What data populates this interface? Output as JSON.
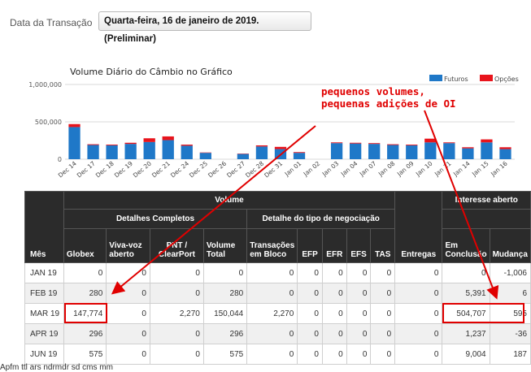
{
  "filter": {
    "label": "Data da Transação",
    "value": "Quarta-feira, 16 de janeiro de 2019. (Preliminar)"
  },
  "chart": {
    "title": "Volume Diário do Câmbio no Gráfico",
    "legend": [
      {
        "name": "Futuros",
        "color": "#1f78c8"
      },
      {
        "name": "Opções",
        "color": "#e8141c"
      }
    ]
  },
  "chart_data": {
    "type": "bar",
    "title": "Volume Diário do Câmbio no Gráfico",
    "stacked": true,
    "ylim": [
      0,
      1000000
    ],
    "yticks": [
      "1,000,000",
      "500,000",
      "0"
    ],
    "ytick_values": [
      1000000,
      500000,
      0
    ],
    "legend_position": "top-right",
    "categories": [
      "Dec 14",
      "Dec 17",
      "Dec 18",
      "Dec 19",
      "Dec 20",
      "Dec 21",
      "Dec 24",
      "Dec 25",
      "Dec 26",
      "Dec 27",
      "Dec 28",
      "Dec 31",
      "Jan 01",
      "Jan 02",
      "Jan 03",
      "Jan 04",
      "Jan 07",
      "Jan 08",
      "Jan 09",
      "Jan 10",
      "Jan 11",
      "Jan 14",
      "Jan 15",
      "Jan 16"
    ],
    "xtick_labels": [
      "Dec 14",
      "Dec 17",
      "Dec 18",
      "Dec 19",
      "Dec 20",
      "Dec 21",
      "Dec 24",
      "Dec 25",
      "Dec 26",
      "Dec 27",
      "Dec 28",
      "Dec 31",
      "Jan 01",
      "Jan 02",
      "Jan 03",
      "Jan 04",
      "Jan 07",
      "Jan 08",
      "Jan 09",
      "Jan 10",
      "Jan 11",
      "Jan 14",
      "Jan 15",
      "Jan 16"
    ],
    "series": [
      {
        "name": "Futuros",
        "color": "#1f78c8",
        "values": [
          430000,
          190000,
          185000,
          205000,
          230000,
          255000,
          180000,
          85000,
          0,
          70000,
          170000,
          135000,
          85000,
          0,
          215000,
          210000,
          205000,
          190000,
          185000,
          225000,
          215000,
          145000,
          225000,
          135000
        ]
      },
      {
        "name": "Opções",
        "color": "#e8141c",
        "values": [
          40000,
          10000,
          10000,
          15000,
          50000,
          50000,
          15000,
          5000,
          0,
          5000,
          15000,
          30000,
          10000,
          0,
          10000,
          10000,
          10000,
          10000,
          10000,
          50000,
          10000,
          15000,
          40000,
          25000
        ]
      }
    ]
  },
  "table": {
    "group_volume": "Volume",
    "group_interest": "Interesse aberto",
    "sub_detalhes": "Detalhes Completos",
    "sub_tipo": "Detalhe do tipo de negociação",
    "col_mes": "Mês",
    "col_globex": "Globex",
    "col_vivavoz": "Viva-voz aberto",
    "col_pnt": "PNT / ClearPort",
    "col_volume_total": "Volume Total",
    "col_transacoes": "Transações em Bloco",
    "col_efp": "EFP",
    "col_efr": "EFR",
    "col_efs": "EFS",
    "col_tas": "TAS",
    "col_entregas": "Entregas",
    "col_em_conclusao": "Em Conclusão",
    "col_mudanca": "Mudança",
    "rows": [
      [
        "JAN 19",
        "0",
        "0",
        "0",
        "0",
        "0",
        "0",
        "0",
        "0",
        "0",
        "0",
        "0",
        "-1,006"
      ],
      [
        "FEB 19",
        "280",
        "0",
        "0",
        "280",
        "0",
        "0",
        "0",
        "0",
        "0",
        "0",
        "5,391",
        "6"
      ],
      [
        "MAR 19",
        "147,774",
        "0",
        "2,270",
        "150,044",
        "2,270",
        "0",
        "0",
        "0",
        "0",
        "0",
        "504,707",
        "595"
      ],
      [
        "APR 19",
        "296",
        "0",
        "0",
        "296",
        "0",
        "0",
        "0",
        "0",
        "0",
        "0",
        "1,237",
        "-36"
      ],
      [
        "JUN 19",
        "575",
        "0",
        "0",
        "575",
        "0",
        "0",
        "0",
        "0",
        "0",
        "0",
        "9,004",
        "187"
      ]
    ]
  },
  "annotation": {
    "line1": "pequenos volumes,",
    "line2": "pequenas adições de OI"
  },
  "footer": {
    "note": "Apfm ttl ars ndrmdr sd cms mm"
  }
}
